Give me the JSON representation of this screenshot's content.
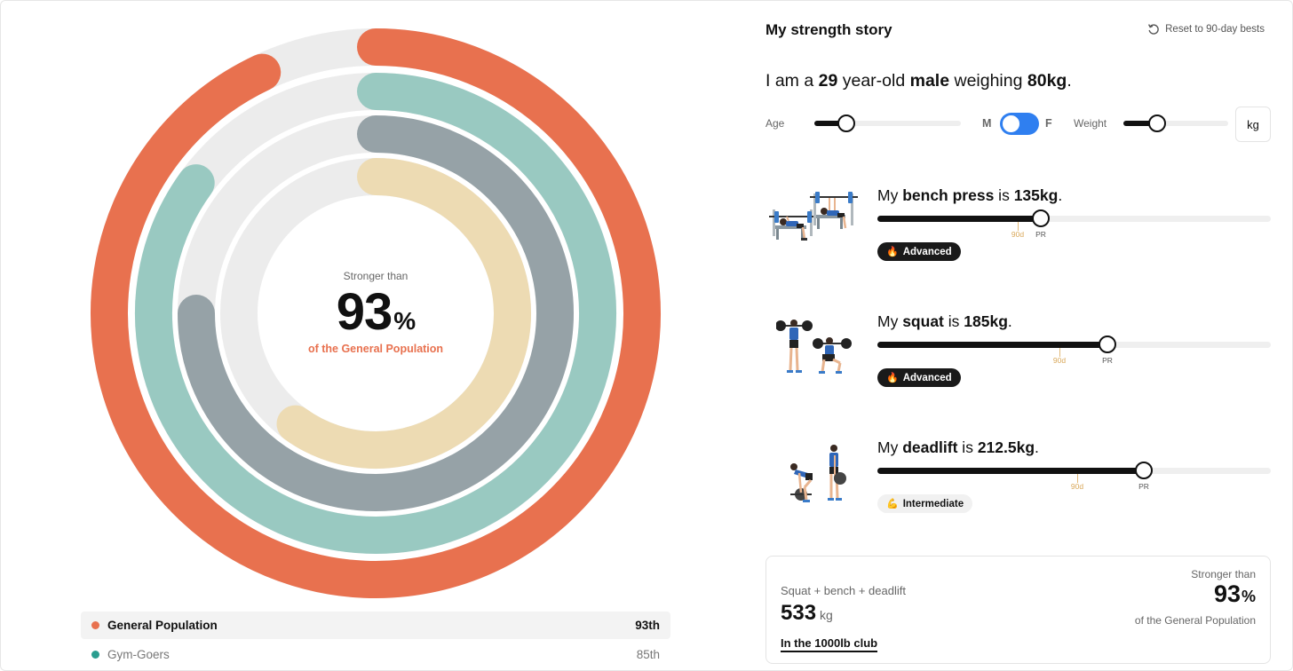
{
  "chart_data": {
    "type": "radial_bar",
    "max": 100,
    "series": [
      {
        "name": "General Population",
        "percentile": 93,
        "color": "#e8714f"
      },
      {
        "name": "Gym-Goers",
        "percentile": 85,
        "color": "#99c9c1"
      },
      {
        "name": "",
        "percentile": 75,
        "color": "#96a2a7"
      },
      {
        "name": "",
        "percentile": 60,
        "color": "#eddbb3"
      }
    ],
    "track_color": "#ececec"
  },
  "center": {
    "caption": "Stronger than",
    "value": "93",
    "pct": "%",
    "sub": "of the General Population"
  },
  "legend": [
    {
      "label": "General Population",
      "rank": "93th",
      "color": "#e8714f"
    },
    {
      "label": "Gym-Goers",
      "rank": "85th",
      "color": "#2a9d8f"
    }
  ],
  "panel": {
    "title": "My strength story",
    "reset_label": "Reset to 90-day bests"
  },
  "profile": {
    "s1": "I am a ",
    "age": "29",
    "s2": " year-old ",
    "sex": "male",
    "s3": " weighing ",
    "weight": "80kg",
    "s4": "."
  },
  "controls": {
    "age_label": "Age",
    "age_fraction": 0.22,
    "sex_m": "M",
    "sex_f": "F",
    "weight_label": "Weight",
    "weight_fraction": 0.32,
    "unit": "kg"
  },
  "lifts": [
    {
      "prefix": "My ",
      "name": "bench press",
      "mid": " is ",
      "value": "135kg",
      "suffix": ".",
      "fraction": 0.415,
      "tick90_fraction": 0.357,
      "tick90_label": "90d",
      "pr_label": "PR",
      "badge": "Advanced",
      "badge_emoji": "🔥",
      "badge_style": "dark",
      "icon": "bench-press-icon"
    },
    {
      "prefix": "My ",
      "name": "squat",
      "mid": " is ",
      "value": "185kg",
      "suffix": ".",
      "fraction": 0.585,
      "tick90_fraction": 0.462,
      "tick90_label": "90d",
      "pr_label": "PR",
      "badge": "Advanced",
      "badge_emoji": "🔥",
      "badge_style": "dark",
      "icon": "squat-icon"
    },
    {
      "prefix": "My ",
      "name": "deadlift",
      "mid": " is ",
      "value": "212.5kg",
      "suffix": ".",
      "fraction": 0.678,
      "tick90_fraction": 0.507,
      "tick90_label": "90d",
      "pr_label": "PR",
      "badge": "Intermediate",
      "badge_emoji": "💪",
      "badge_style": "light",
      "icon": "deadlift-icon"
    }
  ],
  "total": {
    "caption": "Squat + bench + deadlift",
    "value": "533",
    "unit": "kg",
    "club": "In the 1000lb club",
    "right_caption": "Stronger than",
    "right_value": "93",
    "right_pct": "%",
    "right_sub": "of the General Population"
  }
}
